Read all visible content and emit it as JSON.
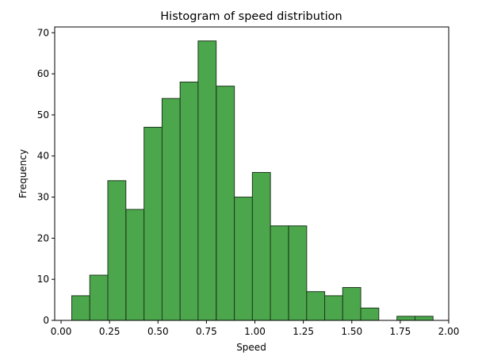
{
  "chart_data": {
    "type": "bar",
    "title": "Histogram of speed distribution",
    "xlabel": "Speed",
    "ylabel": "Frequency",
    "xlim": [
      -0.033,
      2.0
    ],
    "ylim": [
      0,
      71.4
    ],
    "grid": false,
    "legend": "none",
    "bar_color": "#4CA64C",
    "edge_color": "#1E3A1E",
    "bin_width": 0.0932,
    "bins": [
      {
        "x0": 0.055,
        "count": 6
      },
      {
        "x0": 0.148,
        "count": 11
      },
      {
        "x0": 0.241,
        "count": 34
      },
      {
        "x0": 0.335,
        "count": 27
      },
      {
        "x0": 0.428,
        "count": 47
      },
      {
        "x0": 0.521,
        "count": 54
      },
      {
        "x0": 0.614,
        "count": 58
      },
      {
        "x0": 0.707,
        "count": 68
      },
      {
        "x0": 0.801,
        "count": 57
      },
      {
        "x0": 0.894,
        "count": 30
      },
      {
        "x0": 0.987,
        "count": 36
      },
      {
        "x0": 1.08,
        "count": 23
      },
      {
        "x0": 1.174,
        "count": 23
      },
      {
        "x0": 1.267,
        "count": 7
      },
      {
        "x0": 1.36,
        "count": 6
      },
      {
        "x0": 1.453,
        "count": 8
      },
      {
        "x0": 1.546,
        "count": 3
      },
      {
        "x0": 1.64,
        "count": 0
      },
      {
        "x0": 1.733,
        "count": 1
      },
      {
        "x0": 1.826,
        "count": 1
      }
    ],
    "xticks": [
      {
        "value": 0.0,
        "label": "0.00"
      },
      {
        "value": 0.25,
        "label": "0.25"
      },
      {
        "value": 0.5,
        "label": "0.50"
      },
      {
        "value": 0.75,
        "label": "0.75"
      },
      {
        "value": 1.0,
        "label": "1.00"
      },
      {
        "value": 1.25,
        "label": "1.25"
      },
      {
        "value": 1.5,
        "label": "1.50"
      },
      {
        "value": 1.75,
        "label": "1.75"
      },
      {
        "value": 2.0,
        "label": "2.00"
      }
    ],
    "yticks": [
      {
        "value": 0,
        "label": "0"
      },
      {
        "value": 10,
        "label": "10"
      },
      {
        "value": 20,
        "label": "20"
      },
      {
        "value": 30,
        "label": "30"
      },
      {
        "value": 40,
        "label": "40"
      },
      {
        "value": 50,
        "label": "50"
      },
      {
        "value": 60,
        "label": "60"
      },
      {
        "value": 70,
        "label": "70"
      }
    ]
  }
}
